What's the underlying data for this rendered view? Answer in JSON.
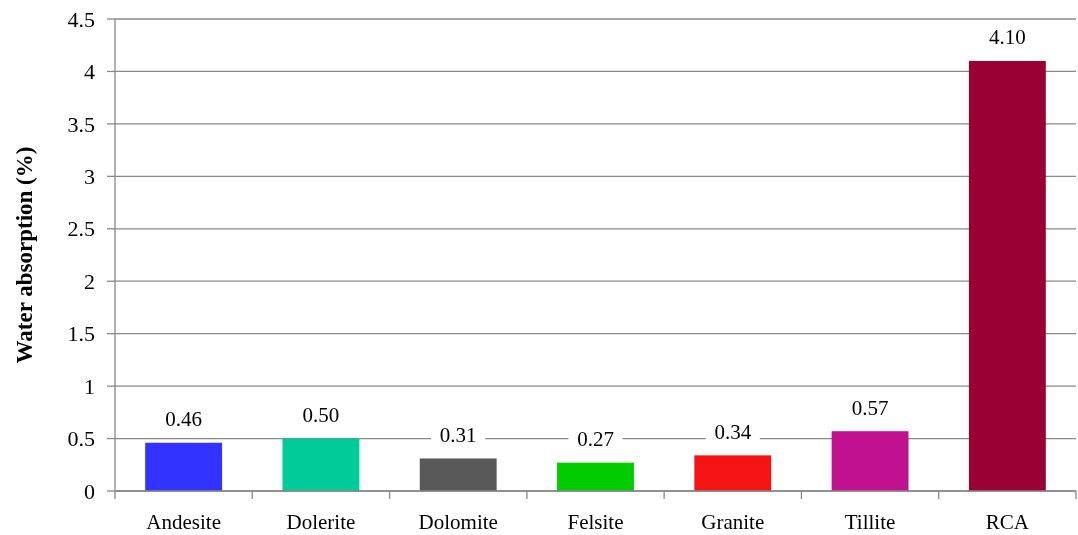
{
  "chart_data": {
    "type": "bar",
    "ylabel": "Water absorption (%)",
    "categories": [
      "Andesite",
      "Dolerite",
      "Dolomite",
      "Felsite",
      "Granite",
      "Tillite",
      "RCA"
    ],
    "values": [
      0.46,
      0.5,
      0.31,
      0.27,
      0.34,
      0.57,
      4.1
    ],
    "value_labels": [
      "0.46",
      "0.50",
      "0.31",
      "0.27",
      "0.34",
      "0.57",
      "4.10"
    ],
    "colors": [
      "#3333ff",
      "#00cc99",
      "#595959",
      "#00cc00",
      "#f41414",
      "#bf1190",
      "#990033"
    ],
    "ylim": [
      0,
      4.5
    ],
    "yticks": [
      0,
      0.5,
      1,
      1.5,
      2,
      2.5,
      3,
      3.5,
      4,
      4.5
    ],
    "grid": "y"
  }
}
